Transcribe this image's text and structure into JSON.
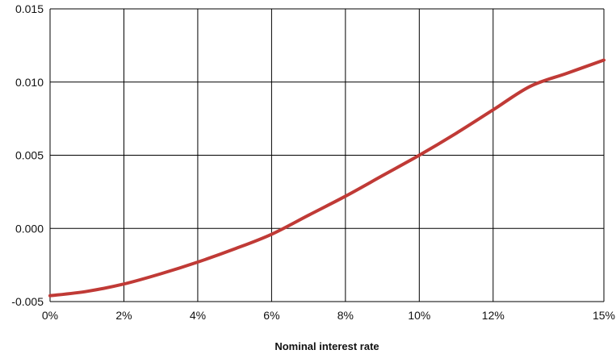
{
  "chart_data": {
    "type": "line",
    "title": "",
    "xlabel": "Nominal interest rate",
    "ylabel": "",
    "xlim": [
      0,
      15
    ],
    "ylim": [
      -0.005,
      0.015
    ],
    "x_ticks": [
      {
        "value": 0,
        "label": "0%"
      },
      {
        "value": 2,
        "label": "2%"
      },
      {
        "value": 4,
        "label": "4%"
      },
      {
        "value": 6,
        "label": "6%"
      },
      {
        "value": 8,
        "label": "8%"
      },
      {
        "value": 10,
        "label": "10%"
      },
      {
        "value": 12,
        "label": "12%"
      },
      {
        "value": 15,
        "label": "15%"
      }
    ],
    "y_ticks": [
      {
        "value": -0.005,
        "label": "-0.005"
      },
      {
        "value": 0.0,
        "label": "0.000"
      },
      {
        "value": 0.005,
        "label": "0.005"
      },
      {
        "value": 0.01,
        "label": "0.010"
      },
      {
        "value": 0.015,
        "label": "0.015"
      }
    ],
    "x_gridlines": [
      0,
      2,
      4,
      6,
      8,
      10,
      12,
      15
    ],
    "y_gridlines": [
      -0.005,
      0.0,
      0.005,
      0.01,
      0.015
    ],
    "grid": true,
    "legend": "none",
    "colors": {
      "line": "#c03a36",
      "grid": "#000000"
    },
    "series": [
      {
        "x": [
          0,
          1,
          2,
          3,
          4,
          5,
          6,
          7,
          8,
          9,
          10,
          11,
          12,
          13,
          14,
          15
        ],
        "values": [
          -0.0046,
          -0.0043,
          -0.0038,
          -0.0031,
          -0.0023,
          -0.0014,
          -0.0004,
          0.0009,
          0.0022,
          0.0036,
          0.005,
          0.0065,
          0.0081,
          0.0097,
          0.0106,
          0.0115
        ]
      }
    ]
  }
}
